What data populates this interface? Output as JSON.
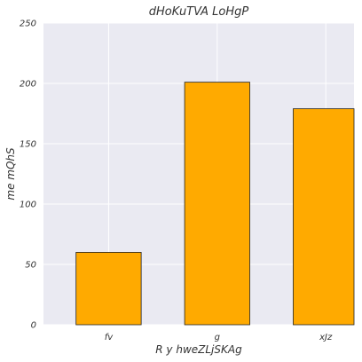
{
  "chart_data": {
    "type": "bar",
    "title": "dHoKuTVA LoHgP",
    "xlabel": "R y hweZLjSKAg",
    "ylabel": "me mQhS",
    "categories": [
      "fv",
      "g",
      "xJz"
    ],
    "values": [
      60,
      201,
      179
    ],
    "ylim": [
      0,
      250
    ],
    "yticks": [
      0,
      50,
      100,
      150,
      200,
      250
    ],
    "grid": true,
    "legend": "none",
    "colors": {
      "bar_fill": "#FFAA00",
      "bar_edge": "#222222",
      "plot_background": "#EAEAF2",
      "grid": "#FFFFFF",
      "text": "#333333"
    }
  }
}
